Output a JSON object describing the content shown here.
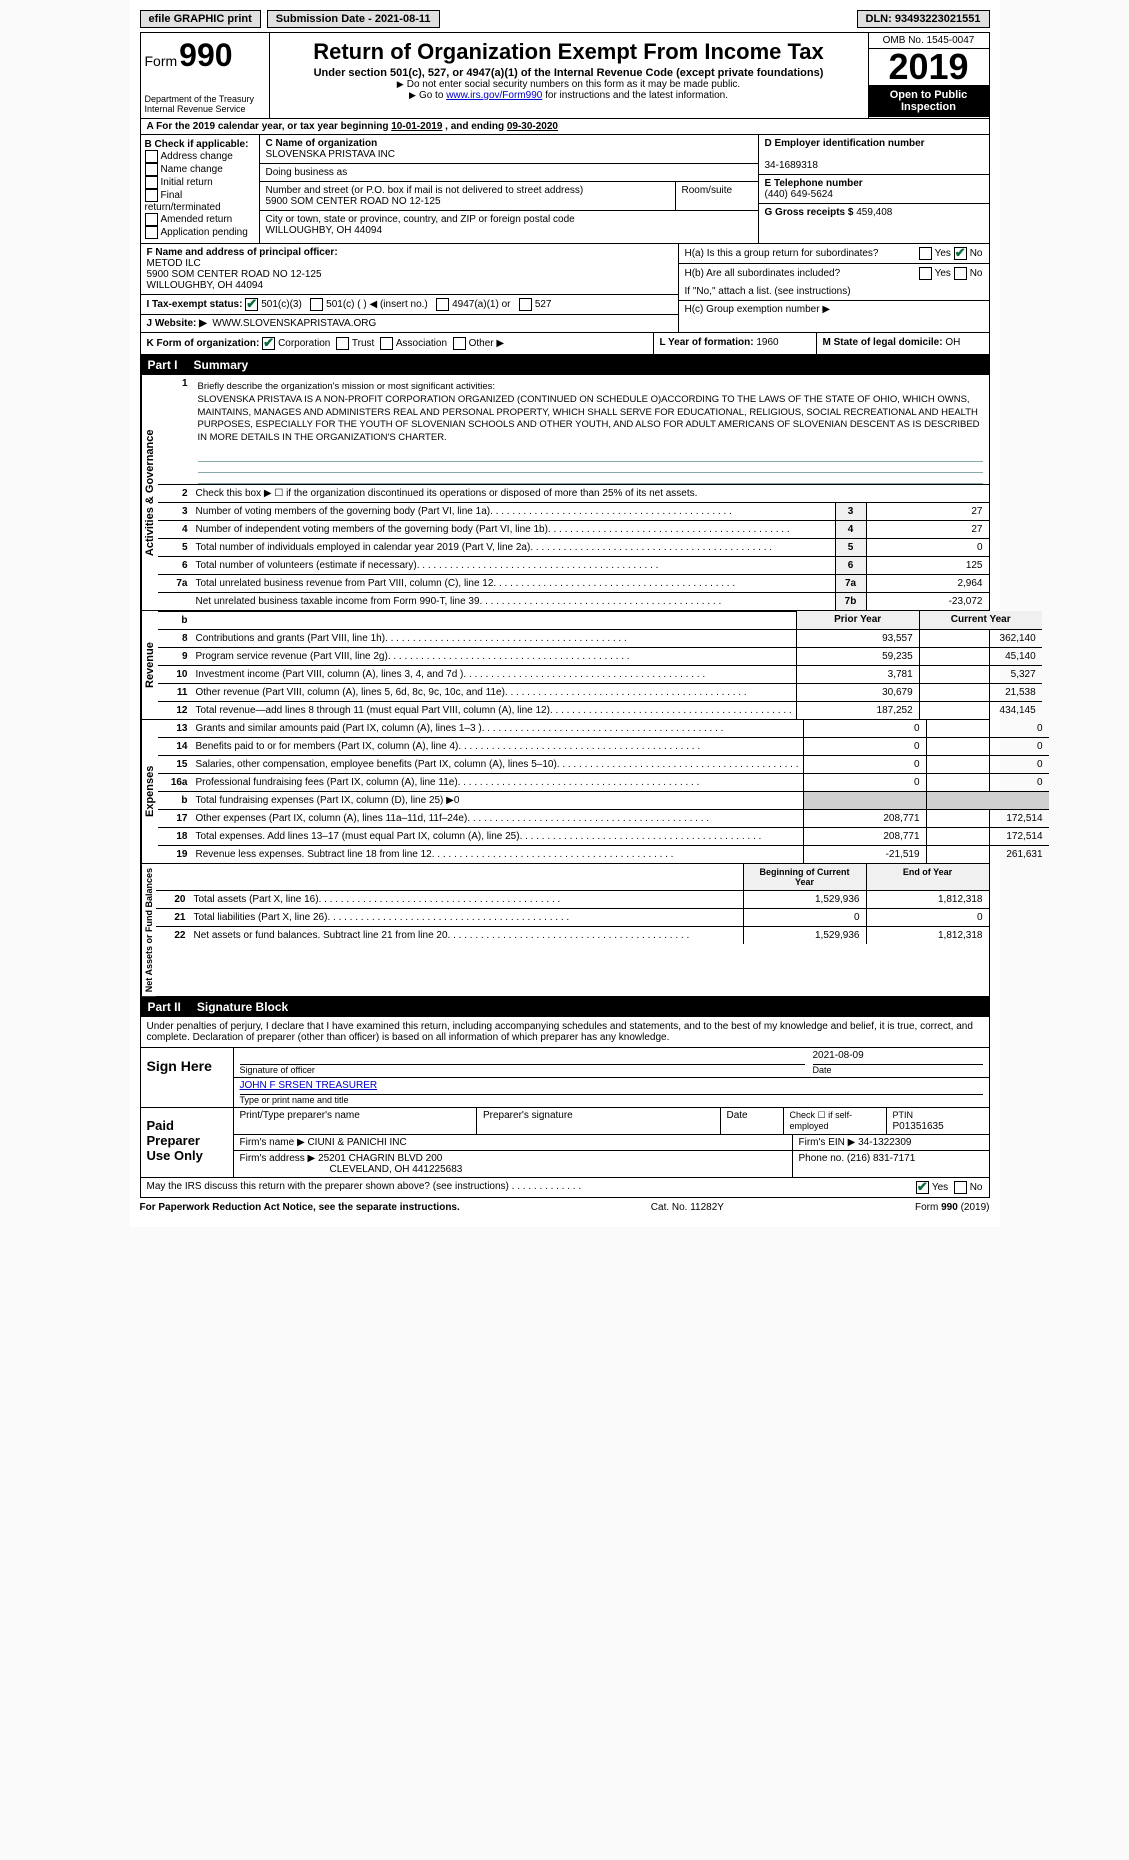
{
  "topbar": {
    "efile": "efile GRAPHIC print",
    "submission_label": "Submission Date - ",
    "submission_date": "2021-08-11",
    "dln_label": "DLN: ",
    "dln": "93493223021551"
  },
  "header": {
    "form_word": "Form",
    "form_num": "990",
    "dept1": "Department of the Treasury",
    "dept2": "Internal Revenue Service",
    "title": "Return of Organization Exempt From Income Tax",
    "subtitle": "Under section 501(c), 527, or 4947(a)(1) of the Internal Revenue Code (except private foundations)",
    "note1": "Do not enter social security numbers on this form as it may be made public.",
    "note2_pre": "Go to ",
    "note2_link": "www.irs.gov/Form990",
    "note2_post": " for instructions and the latest information.",
    "omb": "OMB No. 1545-0047",
    "year": "2019",
    "open": "Open to Public Inspection"
  },
  "row_a": {
    "label_pre": "A For the 2019 calendar year, or tax year beginning ",
    "begin": "10-01-2019",
    "mid": " , and ending ",
    "end": "09-30-2020"
  },
  "box_b": {
    "title": "B Check if applicable:",
    "opts": [
      "Address change",
      "Name change",
      "Initial return",
      "Final return/terminated",
      "Amended return",
      "Application pending"
    ]
  },
  "box_c": {
    "name_label": "C Name of organization",
    "name": "SLOVENSKA PRISTAVA INC",
    "dba_label": "Doing business as",
    "dba": "",
    "addr_label": "Number and street (or P.O. box if mail is not delivered to street address)",
    "room_label": "Room/suite",
    "addr": "5900 SOM CENTER ROAD NO 12-125",
    "city_label": "City or town, state or province, country, and ZIP or foreign postal code",
    "city": "WILLOUGHBY, OH  44094"
  },
  "box_d": {
    "label": "D Employer identification number",
    "value": "34-1689318"
  },
  "box_e": {
    "label": "E Telephone number",
    "value": "(440) 649-5624"
  },
  "box_g": {
    "label": "G Gross receipts $ ",
    "value": "459,408"
  },
  "box_f": {
    "label": "F Name and address of principal officer:",
    "name": "METOD ILC",
    "addr1": "5900 SOM CENTER ROAD NO 12-125",
    "addr2": "WILLOUGHBY, OH  44094"
  },
  "box_h": {
    "a_label": "H(a)  Is this a group return for subordinates?",
    "b_label": "H(b)  Are all subordinates included?",
    "b_note": "If \"No,\" attach a list. (see instructions)",
    "c_label": "H(c)  Group exemption number ▶",
    "yes": "Yes",
    "no": "No"
  },
  "row_i": {
    "label": "I  Tax-exempt status:",
    "o1": "501(c)(3)",
    "o2": "501(c) (   ) ◀ (insert no.)",
    "o3": "4947(a)(1) or",
    "o4": "527"
  },
  "row_j": {
    "label": "J  Website: ▶",
    "value": "WWW.SLOVENSKAPRISTAVA.ORG"
  },
  "row_k": {
    "label": "K Form of organization:",
    "opts": [
      "Corporation",
      "Trust",
      "Association",
      "Other ▶"
    ]
  },
  "row_l": {
    "label": "L Year of formation: ",
    "value": "1960"
  },
  "row_m": {
    "label": "M State of legal domicile: ",
    "value": "OH"
  },
  "part1": {
    "header_num": "Part I",
    "header_title": "Summary",
    "side_ag": "Activities & Governance",
    "side_rev": "Revenue",
    "side_exp": "Expenses",
    "side_na": "Net Assets or Fund Balances",
    "l1_label": "Briefly describe the organization's mission or most significant activities:",
    "l1_text": "SLOVENSKA PRISTAVA IS A NON-PROFIT CORPORATION ORGANIZED (CONTINUED ON SCHEDULE O)ACCORDING TO THE LAWS OF THE STATE OF OHIO, WHICH OWNS, MAINTAINS, MANAGES AND ADMINISTERS REAL AND PERSONAL PROPERTY, WHICH SHALL SERVE FOR EDUCATIONAL, RELIGIOUS, SOCIAL RECREATIONAL AND HEALTH PURPOSES, ESPECIALLY FOR THE YOUTH OF SLOVENIAN SCHOOLS AND OTHER YOUTH, AND ALSO FOR ADULT AMERICANS OF SLOVENIAN DESCENT AS IS DESCRIBED IN MORE DETAILS IN THE ORGANIZATION'S CHARTER.",
    "l2": "Check this box ▶ ☐ if the organization discontinued its operations or disposed of more than 25% of its net assets.",
    "rows_ag": [
      {
        "n": "3",
        "t": "Number of voting members of the governing body (Part VI, line 1a)",
        "mn": "3",
        "v": "27"
      },
      {
        "n": "4",
        "t": "Number of independent voting members of the governing body (Part VI, line 1b)",
        "mn": "4",
        "v": "27"
      },
      {
        "n": "5",
        "t": "Total number of individuals employed in calendar year 2019 (Part V, line 2a)",
        "mn": "5",
        "v": "0"
      },
      {
        "n": "6",
        "t": "Total number of volunteers (estimate if necessary)",
        "mn": "6",
        "v": "125"
      },
      {
        "n": "7a",
        "t": "Total unrelated business revenue from Part VIII, column (C), line 12",
        "mn": "7a",
        "v": "2,964"
      },
      {
        "n": "",
        "t": "Net unrelated business taxable income from Form 990-T, line 39",
        "mn": "7b",
        "v": "-23,072"
      }
    ],
    "hdr_prior": "Prior Year",
    "hdr_current": "Current Year",
    "rows_rev": [
      {
        "n": "8",
        "t": "Contributions and grants (Part VIII, line 1h)",
        "p": "93,557",
        "c": "362,140"
      },
      {
        "n": "9",
        "t": "Program service revenue (Part VIII, line 2g)",
        "p": "59,235",
        "c": "45,140"
      },
      {
        "n": "10",
        "t": "Investment income (Part VIII, column (A), lines 3, 4, and 7d )",
        "p": "3,781",
        "c": "5,327"
      },
      {
        "n": "11",
        "t": "Other revenue (Part VIII, column (A), lines 5, 6d, 8c, 9c, 10c, and 11e)",
        "p": "30,679",
        "c": "21,538"
      },
      {
        "n": "12",
        "t": "Total revenue—add lines 8 through 11 (must equal Part VIII, column (A), line 12)",
        "p": "187,252",
        "c": "434,145"
      }
    ],
    "rows_exp": [
      {
        "n": "13",
        "t": "Grants and similar amounts paid (Part IX, column (A), lines 1–3 )",
        "p": "0",
        "c": "0"
      },
      {
        "n": "14",
        "t": "Benefits paid to or for members (Part IX, column (A), line 4)",
        "p": "0",
        "c": "0"
      },
      {
        "n": "15",
        "t": "Salaries, other compensation, employee benefits (Part IX, column (A), lines 5–10)",
        "p": "0",
        "c": "0"
      },
      {
        "n": "16a",
        "t": "Professional fundraising fees (Part IX, column (A), line 11e)",
        "p": "0",
        "c": "0"
      },
      {
        "n": "b",
        "t": "Total fundraising expenses (Part IX, column (D), line 25) ▶0",
        "shade": true
      },
      {
        "n": "17",
        "t": "Other expenses (Part IX, column (A), lines 11a–11d, 11f–24e)",
        "p": "208,771",
        "c": "172,514"
      },
      {
        "n": "18",
        "t": "Total expenses. Add lines 13–17 (must equal Part IX, column (A), line 25)",
        "p": "208,771",
        "c": "172,514"
      },
      {
        "n": "19",
        "t": "Revenue less expenses. Subtract line 18 from line 12",
        "p": "-21,519",
        "c": "261,631"
      }
    ],
    "hdr_begin": "Beginning of Current Year",
    "hdr_end": "End of Year",
    "rows_na": [
      {
        "n": "20",
        "t": "Total assets (Part X, line 16)",
        "p": "1,529,936",
        "c": "1,812,318"
      },
      {
        "n": "21",
        "t": "Total liabilities (Part X, line 26)",
        "p": "0",
        "c": "0"
      },
      {
        "n": "22",
        "t": "Net assets or fund balances. Subtract line 21 from line 20",
        "p": "1,529,936",
        "c": "1,812,318"
      }
    ]
  },
  "part2": {
    "header_num": "Part II",
    "header_title": "Signature Block",
    "perjury": "Under penalties of perjury, I declare that I have examined this return, including accompanying schedules and statements, and to the best of my knowledge and belief, it is true, correct, and complete. Declaration of preparer (other than officer) is based on all information of which preparer has any knowledge.",
    "sign_here": "Sign Here",
    "sig_officer": "Signature of officer",
    "sig_date_label": "Date",
    "sig_date": "2021-08-09",
    "officer_name": "JOHN F SRSEN  TREASURER",
    "type_name_label": "Type or print name and title",
    "paid": "Paid Preparer Use Only",
    "pp_name": "Print/Type preparer's name",
    "pp_sig": "Preparer's signature",
    "pp_date": "Date",
    "pp_check": "Check ☐ if self-employed",
    "ptin_label": "PTIN",
    "ptin": "P01351635",
    "firm_name_label": "Firm's name   ▶",
    "firm_name": "CIUNI & PANICHI INC",
    "firm_ein_label": "Firm's EIN ▶",
    "firm_ein": "34-1322309",
    "firm_addr_label": "Firm's address ▶",
    "firm_addr1": "25201 CHAGRIN BLVD 200",
    "firm_addr2": "CLEVELAND, OH  441225683",
    "phone_label": "Phone no. ",
    "phone": "(216) 831-7171",
    "discuss": "May the IRS discuss this return with the preparer shown above? (see instructions)",
    "foot1": "For Paperwork Reduction Act Notice, see the separate instructions.",
    "foot2": "Cat. No. 11282Y",
    "foot3": "Form 990 (2019)"
  }
}
